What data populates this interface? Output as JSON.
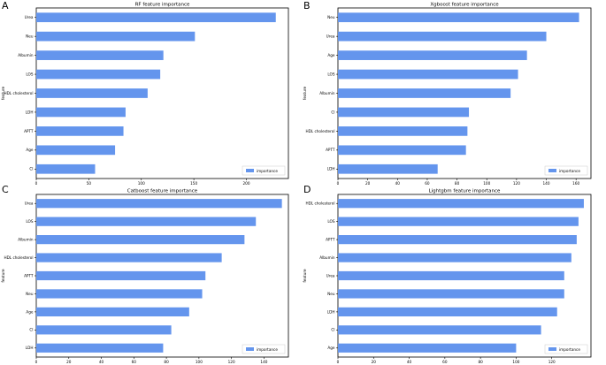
{
  "panel_letters": [
    "A",
    "B",
    "C",
    "D"
  ],
  "chart_data": [
    {
      "type": "bar",
      "orientation": "horizontal",
      "title": "RF feature importance",
      "ylabel": "feature",
      "xlabel": "",
      "legend": "importance",
      "legend_position": "bottom-right",
      "bar_color": "#6495ed",
      "categories": [
        "Urea",
        "Neu",
        "Albumin",
        "LOS",
        "HDL cholesterol",
        "LDH",
        "APTT",
        "Age",
        "CI"
      ],
      "values": [
        228,
        151,
        121,
        118,
        106,
        85,
        83,
        75,
        56
      ],
      "xlim": [
        0,
        240
      ],
      "xticks": [
        0,
        50,
        100,
        150,
        200
      ]
    },
    {
      "type": "bar",
      "orientation": "horizontal",
      "title": "Xgboost feature importance",
      "ylabel": "feature",
      "xlabel": "",
      "legend": "importance",
      "legend_position": "bottom-right",
      "bar_color": "#6495ed",
      "categories": [
        "Neu",
        "Urea",
        "Age",
        "LOS",
        "Albumin",
        "CI",
        "HDL cholesterol",
        "APTT",
        "LDH"
      ],
      "values": [
        162,
        140,
        127,
        121,
        116,
        88,
        87,
        86,
        67
      ],
      "xlim": [
        0,
        170
      ],
      "xticks": [
        0,
        20,
        40,
        60,
        80,
        100,
        120,
        140,
        160
      ]
    },
    {
      "type": "bar",
      "orientation": "horizontal",
      "title": "Catboost feature importance",
      "ylabel": "feature",
      "xlabel": "",
      "legend": "importance",
      "legend_position": "bottom-right",
      "bar_color": "#6495ed",
      "categories": [
        "Urea",
        "LOS",
        "Albumin",
        "HDL cholesterol",
        "APTT",
        "Neu",
        "Age",
        "CI",
        "LDH"
      ],
      "values": [
        151,
        135,
        128,
        114,
        104,
        102,
        94,
        83,
        78
      ],
      "xlim": [
        0,
        155
      ],
      "xticks": [
        0,
        20,
        40,
        60,
        80,
        100,
        120,
        140
      ]
    },
    {
      "type": "bar",
      "orientation": "horizontal",
      "title": "Lightgbm feature importance",
      "ylabel": "feature",
      "xlabel": "",
      "legend": "importance",
      "legend_position": "bottom-right",
      "bar_color": "#6495ed",
      "categories": [
        "HDL cholesterol",
        "LOS",
        "APTT",
        "Albumin",
        "Urea",
        "Neu",
        "LDH",
        "CI",
        "Age"
      ],
      "values": [
        138,
        135,
        134,
        131,
        127,
        127,
        123,
        114,
        100
      ],
      "xlim": [
        0,
        142
      ],
      "xticks": [
        0,
        20,
        40,
        60,
        80,
        100,
        120
      ]
    }
  ]
}
